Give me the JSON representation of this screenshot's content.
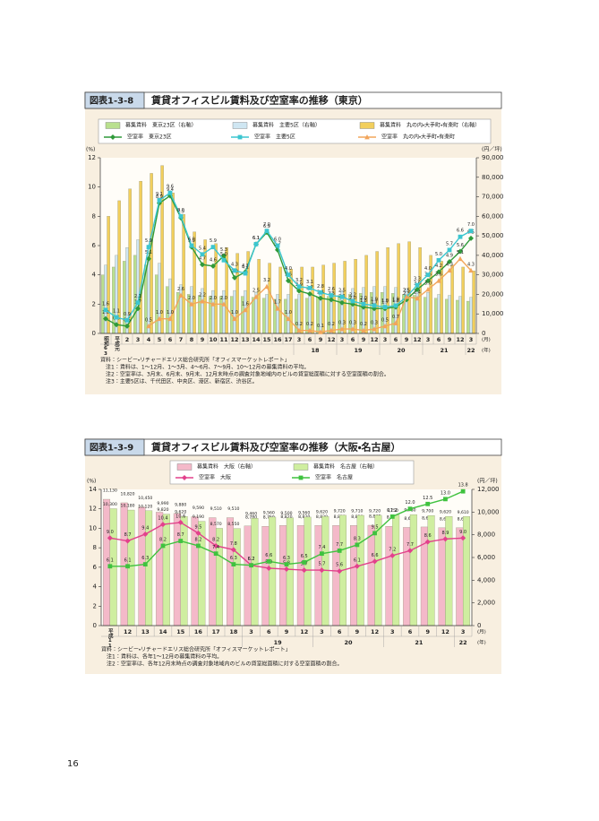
{
  "page_number": "16",
  "chart_data": [
    {
      "type": "bar_line",
      "figure_label": "図表1-3-8",
      "title": "賃貸オフィスビル賃料及び空室率の推移（東京）",
      "y_label": "(%)",
      "y2_label": "(円／坪)",
      "x_label_month": "(月)",
      "x_label_year": "(年)",
      "categories": [
        "昭和63",
        "平成元",
        "2",
        "3",
        "4",
        "5",
        "6",
        "7",
        "8",
        "9",
        "10",
        "11",
        "12",
        "13",
        "14",
        "15",
        "16",
        "17",
        "3",
        "6",
        "9",
        "12",
        "3",
        "6",
        "9",
        "12",
        "3",
        "6",
        "9",
        "12",
        "3",
        "6",
        "9",
        "12",
        "3"
      ],
      "category_groups": [
        null,
        null,
        null,
        null,
        null,
        null,
        null,
        null,
        null,
        null,
        null,
        null,
        null,
        null,
        null,
        null,
        null,
        null,
        "18",
        null,
        null,
        null,
        "19",
        null,
        null,
        null,
        "20",
        null,
        null,
        null,
        "21",
        null,
        null,
        null,
        "22"
      ],
      "ylim": [
        0,
        12
      ],
      "yticks": [
        0,
        2,
        4,
        6,
        8,
        10,
        12
      ],
      "y2lim": [
        0,
        90000
      ],
      "y2ticks": [
        0,
        {
          "value": 10000,
          "label": "10,000"
        },
        {
          "value": 20000,
          "label": "20,000"
        },
        {
          "value": 30000,
          "label": "30,000"
        },
        {
          "value": 40000,
          "label": "40,000"
        },
        {
          "value": 50000,
          "label": "50,000"
        },
        {
          "value": 60000,
          "label": "60,000"
        },
        {
          "value": 70000,
          "label": "70,000"
        },
        {
          "value": 80000,
          "label": "80,000"
        },
        {
          "value": 90000,
          "label": "90,000"
        }
      ],
      "grid": false,
      "series": [
        {
          "name": "募集賃料　東京23区（右軸）",
          "type": "bar",
          "axis": "y2",
          "color": "#b9e08e",
          "values": [
            30000,
            34000,
            37000,
            40000,
            35000,
            30000,
            24000,
            21000,
            20000,
            19500,
            19000,
            19000,
            19000,
            19000,
            18500,
            18000,
            17500,
            17500,
            17500,
            18000,
            18500,
            19000,
            19500,
            20000,
            20500,
            21000,
            21000,
            20500,
            20000,
            19500,
            18500,
            18000,
            17500,
            17000,
            16500
          ]
        },
        {
          "name": "募集賃料　主要5区（右軸）",
          "type": "bar",
          "axis": "y2",
          "color": "#cfe6f2",
          "values": [
            35000,
            40000,
            44000,
            48000,
            42000,
            36000,
            28000,
            25000,
            24000,
            23000,
            22000,
            22000,
            22000,
            22000,
            21000,
            20000,
            20000,
            20000,
            20000,
            20500,
            21000,
            21500,
            22000,
            23000,
            23500,
            24000,
            24000,
            23500,
            23000,
            22000,
            21000,
            20000,
            19500,
            19000,
            18500
          ]
        },
        {
          "name": "募集賃料　丸の内・大手町・有楽町（右軸）",
          "type": "bar",
          "axis": "y2",
          "color": "#f2cf5c",
          "values": [
            60000,
            68000,
            74000,
            78000,
            82000,
            86000,
            72000,
            61000,
            52000,
            48000,
            46000,
            44000,
            41000,
            42000,
            38000,
            36000,
            34000,
            33000,
            34000,
            34000,
            35000,
            36000,
            37000,
            38000,
            40000,
            42000,
            44000,
            46000,
            47000,
            44000,
            40000,
            37000,
            35000,
            34000,
            32000
          ]
        },
        {
          "name": "空室率　東京23区",
          "type": "line",
          "axis": "y",
          "color": "#2f9a3a",
          "marker": "diamond",
          "values": [
            1.0,
            0.6,
            0.5,
            1.7,
            5.1,
            8.9,
            9.4,
            7.9,
            5.9,
            4.7,
            4.6,
            5.3,
            3.8,
            4.2,
            6.1,
            6.9,
            5.7,
            3.6,
            2.9,
            2.7,
            2.4,
            2.3,
            2.1,
            2.0,
            1.8,
            1.7,
            1.7,
            1.8,
            2.3,
            3.0,
            3.6,
            4.2,
            4.9,
            5.6,
            6.5
          ],
          "value_labels": [
            "1.0",
            "0.6",
            "0.5",
            "1.7",
            "5.1",
            "8.9",
            "9.4",
            "7.9",
            "5.9",
            "4.7",
            "4.6",
            "5.3",
            "3.8",
            "4.2",
            "6.1",
            "6.9",
            "5.7",
            "3.6",
            "2.9",
            "2.7",
            "2.4",
            "2.3",
            "2.1",
            "2.0",
            "1.8",
            "1.7",
            "1.7",
            "1.8",
            "2.3",
            "3.0",
            "3.6",
            "4.2",
            "4.9",
            "5.6",
            "6.5"
          ]
        },
        {
          "name": "空室率　主要5区",
          "type": "line",
          "axis": "y",
          "color": "#3cc6d0",
          "marker": "square",
          "values": [
            1.6,
            1.1,
            0.9,
            2.1,
            5.9,
            9.1,
            9.6,
            8.0,
            6.0,
            5.4,
            5.9,
            5.0,
            4.3,
            4.1,
            6.1,
            7.0,
            6.0,
            4.0,
            3.2,
            3.1,
            2.8,
            2.6,
            2.5,
            2.2,
            2.0,
            1.9,
            1.8,
            1.9,
            2.5,
            3.3,
            4.0,
            5.0,
            5.7,
            6.6,
            7.0
          ],
          "value_labels": [
            "1.6",
            "1.1",
            "0.9",
            "2.1",
            "5.9",
            "9.1",
            "9.6",
            "8.0",
            "6.0",
            "5.4",
            "5.9",
            "5.0",
            "4.3",
            "4.1",
            "6.1",
            "7.0",
            "6.0",
            "4.0",
            "3.2",
            "3.1",
            "2.8",
            "2.6",
            "2.5",
            "2.2",
            "2.0",
            "1.9",
            "1.8",
            "1.9",
            "2.5",
            "3.3",
            "4.0",
            "5.0",
            "5.7",
            "6.6",
            "7.0"
          ]
        },
        {
          "name": "空室率　丸の内・大手町・有楽町",
          "type": "line",
          "axis": "y",
          "color": "#f2a55c",
          "marker": "triangle",
          "values": [
            null,
            null,
            null,
            null,
            0.5,
            1.0,
            1.0,
            2.6,
            2.0,
            2.2,
            2.0,
            2.0,
            1.0,
            1.6,
            2.5,
            3.2,
            1.7,
            1.0,
            0.2,
            0.2,
            0.1,
            0.2,
            0.3,
            0.3,
            0.2,
            0.3,
            0.5,
            0.7,
            2.5,
            2.4,
            3.0,
            3.6,
            4.3,
            5.1,
            4.3
          ],
          "value_labels": [
            null,
            null,
            null,
            null,
            "0.5",
            "1.0",
            "1.0",
            "2.6",
            "2.0",
            "2.2",
            "2.0",
            "2.0",
            "1.0",
            "1.6",
            "2.5",
            "3.2",
            "1.7",
            "1.0",
            "0.2",
            "0.2",
            "0.1",
            "0.2",
            "0.3",
            "0.3",
            "0.2",
            "0.3",
            "0.5",
            "0.7",
            "2.5",
            "2.4",
            "3.0",
            "3.6",
            "4.3",
            "5.1",
            "4.3"
          ]
        }
      ],
      "notes": [
        "資料：シービー・リチャードエリス総合研究所「オフィスマーケットレポート」",
        "注1：賃料は、1〜12月、1〜3月、4〜6月、7〜9月、10〜12月の募集賃料の平均。",
        "注2：空室率は、3月末、6月末、9月末、12月末時点の調査対象地域内のビルの貸室総面積に対する空室面積の割合。",
        "注3：主要5区は、千代田区、中央区、港区、新宿区、渋谷区。"
      ]
    },
    {
      "type": "bar_line",
      "figure_label": "図表1-3-9",
      "title": "賃貸オフィスビル賃料及び空室率の推移（大阪・名古屋）",
      "y_label": "(%)",
      "y2_label": "(円／坪)",
      "x_label_month": "(月)",
      "x_label_year": "(年)",
      "categories": [
        "平成11",
        "12",
        "13",
        "14",
        "15",
        "16",
        "17",
        "18",
        "3",
        "6",
        "9",
        "12",
        "3",
        "6",
        "9",
        "12",
        "3",
        "6",
        "9",
        "12",
        "3"
      ],
      "category_groups": [
        null,
        null,
        null,
        null,
        null,
        null,
        null,
        null,
        "19",
        null,
        null,
        null,
        "20",
        null,
        null,
        null,
        "21",
        null,
        null,
        null,
        "22"
      ],
      "ylim": [
        0,
        14
      ],
      "yticks": [
        0,
        2,
        4,
        6,
        8,
        10,
        12,
        14
      ],
      "y2lim": [
        0,
        12000
      ],
      "y2ticks": [
        0,
        {
          "value": 2000,
          "label": "2,000"
        },
        {
          "value": 4000,
          "label": "4,000"
        },
        {
          "value": 6000,
          "label": "6,000"
        },
        {
          "value": 8000,
          "label": "8,000"
        },
        {
          "value": 10000,
          "label": "10,000"
        },
        {
          "value": 12000,
          "label": "12,000"
        }
      ],
      "grid": false,
      "series": [
        {
          "name": "募集賃料　大阪（右軸）",
          "type": "bar",
          "axis": "y2",
          "color": "#f4b9c9",
          "values": [
            11130,
            10820,
            10450,
            9990,
            9880,
            9590,
            9510,
            9510,
            8780,
            8750,
            8820,
            8820,
            8820,
            8820,
            8820,
            8840,
            8750,
            8650,
            8690,
            8620,
            8620
          ],
          "value_labels": [
            "11,130",
            "10,820",
            "10,450",
            "9,990",
            "9,880",
            "9,590",
            "9,510",
            "9,510",
            "8,780",
            "8,750",
            "8,820",
            "8,820",
            "8,820",
            "8,820",
            "8,820",
            "8,840",
            "8,750",
            "8,650",
            "8,690",
            "8,620",
            "8,620"
          ]
        },
        {
          "name": "募集賃料　名古屋（右軸）",
          "type": "bar",
          "axis": "y2",
          "color": "#cfeea0",
          "values": [
            10300,
            10180,
            10120,
            9820,
            9620,
            9190,
            8570,
            8550,
            9460,
            9560,
            9500,
            9560,
            9620,
            9720,
            9710,
            9720,
            9750,
            9780,
            9700,
            9620,
            9610
          ],
          "value_labels": [
            "10,300",
            "10,180",
            "10,120",
            "9,820",
            "9,620",
            "9,190",
            "8,570",
            "8,550",
            "9,460",
            "9,560",
            "9,500",
            "9,560",
            "9,620",
            "9,720",
            "9,710",
            "9,720",
            "9,750",
            "9,780",
            "9,700",
            "9,620",
            "9,610"
          ]
        },
        {
          "name": "空室率　大阪",
          "type": "line",
          "axis": "y",
          "color": "#e2418c",
          "marker": "diamond",
          "values": [
            9.0,
            8.7,
            9.4,
            10.4,
            10.6,
            9.5,
            8.2,
            7.8,
            6.2,
            5.9,
            5.8,
            5.7,
            5.7,
            5.6,
            6.1,
            6.6,
            7.2,
            7.7,
            8.6,
            8.9,
            9.0
          ],
          "value_labels": [
            "9.0",
            "8.7",
            "9.4",
            "10.4",
            "10.6",
            "9.5",
            "8.2",
            "7.8",
            "6.2",
            "5.9",
            "5.8",
            "5.7",
            "5.7",
            "5.6",
            "6.1",
            "6.6",
            "7.2",
            "7.7",
            "8.6",
            "8.9",
            "9.0"
          ]
        },
        {
          "name": "空室率　名古屋",
          "type": "line",
          "axis": "y",
          "color": "#3fc23f",
          "marker": "square",
          "values": [
            6.1,
            6.1,
            6.3,
            8.2,
            8.7,
            8.2,
            7.4,
            6.3,
            6.2,
            6.6,
            6.3,
            6.5,
            7.4,
            7.7,
            8.3,
            9.5,
            11.2,
            12.0,
            12.5,
            13.0,
            13.8
          ],
          "value_labels": [
            "6.1",
            "6.1",
            "6.3",
            "8.2",
            "8.7",
            "8.2",
            "7.4",
            "6.3",
            "6.2",
            "6.6",
            "6.3",
            "6.5",
            "7.4",
            "7.7",
            "8.3",
            "9.5",
            "11.2",
            "12.0",
            "12.5",
            "13.0",
            "13.8"
          ]
        }
      ],
      "notes": [
        "資料：シービー・リチャードエリス総合研究所「オフィスマーケットレポート」",
        "注1：賃料は、各年1〜12月の募集賃料の平均。",
        "注2：空室率は、各年12月末時点の調査対象地域内のビルの貸室総面積に対する空室面積の割合。"
      ]
    }
  ]
}
